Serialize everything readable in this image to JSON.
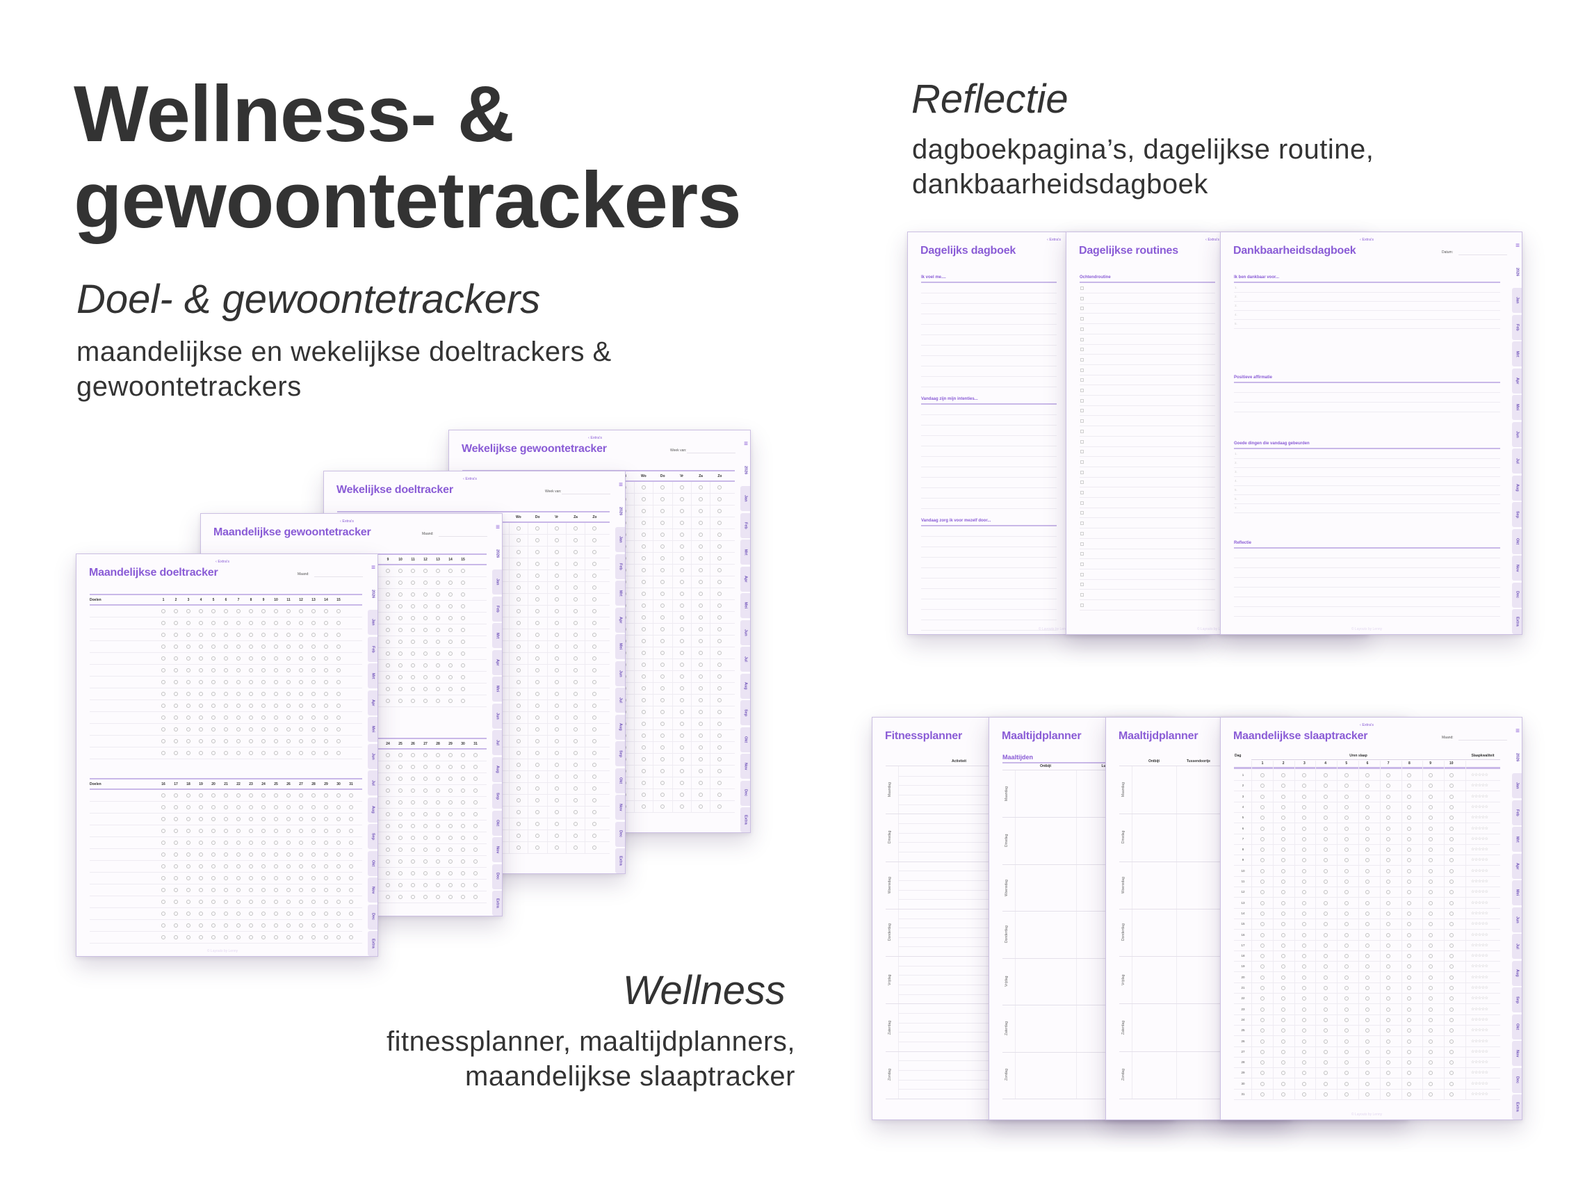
{
  "hero": {
    "title_line1": "Wellness- &",
    "title_line2": "gewoontetrackers"
  },
  "common": {
    "back_link": "‹ Extra's",
    "menu_icon": "hamburger-menu-icon",
    "tabs": [
      "2026",
      "Jan",
      "Feb",
      "Mrt",
      "Apr",
      "Mei",
      "Jun",
      "Jul",
      "Aug",
      "Sep",
      "Okt",
      "Nov",
      "Dec",
      "Extra"
    ],
    "footer": "© Layouts by Lenny"
  },
  "goals": {
    "heading": "Doel- & gewoontetrackers",
    "description": [
      "maandelijkse en wekelijkse doeltrackers &",
      "gewoontetrackers"
    ],
    "monthly_goal_tracker": {
      "title": "Maandelijkse doeltracker",
      "field_label": "Maand:",
      "row_label": "Doelen",
      "days_first": [
        "1",
        "2",
        "3",
        "4",
        "5",
        "6",
        "7",
        "8",
        "9",
        "10",
        "11",
        "12",
        "13",
        "14",
        "15"
      ],
      "days_second": [
        "16",
        "17",
        "18",
        "19",
        "20",
        "21",
        "22",
        "23",
        "24",
        "25",
        "26",
        "27",
        "28",
        "29",
        "30",
        "31"
      ]
    },
    "monthly_habit_tracker": {
      "title": "Maandelijkse gewoontetracker",
      "field_label": "Maand:",
      "days_first": [
        "1",
        "2",
        "3",
        "4",
        "5",
        "6",
        "7",
        "8",
        "9",
        "10",
        "11",
        "12",
        "13",
        "14",
        "15"
      ],
      "days_second": [
        "16",
        "17",
        "18",
        "19",
        "20",
        "21",
        "22",
        "23",
        "24",
        "25",
        "26",
        "27",
        "28",
        "29",
        "30",
        "31"
      ]
    },
    "weekly_goal_tracker": {
      "title": "Wekelijkse doeltracker",
      "field_label": "Week van:",
      "weekdays": [
        "Ma",
        "Di",
        "Wo",
        "Do",
        "Vr",
        "Za",
        "Zo"
      ]
    },
    "weekly_habit_tracker": {
      "title": "Wekelijkse gewoontetracker",
      "field_label": "Week van:",
      "weekdays": [
        "Ma",
        "Di",
        "Wo",
        "Do",
        "Vr",
        "Za",
        "Zo"
      ]
    }
  },
  "reflection": {
    "heading": "Reflectie",
    "description": [
      "dagboekpagina’s, dagelijkse routine,",
      "dankbaarheidsdagboek"
    ],
    "daily_journal": {
      "title": "Dagelijks dagboek",
      "sections": [
        "Ik voel me....",
        "Vandaag zijn mijn intenties...",
        "Vandaag zorg ik voor mezelf door..."
      ]
    },
    "daily_routines": {
      "title": "Dagelijkse routines",
      "section": "Ochtendroutine"
    },
    "gratitude_journal": {
      "title": "Dankbaarheidsdagboek",
      "field_label": "Datum:",
      "sections": [
        {
          "label": "Ik ben dankbaar voor...",
          "items": [
            "1.",
            "2.",
            "3.",
            "4.",
            "5."
          ]
        },
        {
          "label": "Positieve affirmatie",
          "items": []
        },
        {
          "label": "Goede dingen die vandaag gebeurden",
          "items": [
            "1.",
            "2.",
            "3.",
            "4.",
            "5.",
            "6.",
            "7."
          ]
        },
        {
          "label": "Reflectie",
          "items": []
        }
      ]
    }
  },
  "wellness": {
    "heading": "Wellness",
    "description": [
      "fitnessplanner, maaltijdplanners,",
      "maandelijkse slaaptracker"
    ],
    "weekdays": [
      "Maandag",
      "Dinsdag",
      "Woensdag",
      "Donderdag",
      "Vrijdag",
      "Zaterdag",
      "Zondag"
    ],
    "fitness_planner": {
      "title": "Fitnessplanner",
      "column": "Activiteit"
    },
    "meal_planner_1": {
      "title": "Maaltijdplanner",
      "subheading": "Maaltijden",
      "columns": [
        "Ontbijt",
        "Lunch"
      ]
    },
    "meal_planner_2": {
      "title": "Maaltijdplanner",
      "columns": [
        "Ontbijt",
        "Tussendoortje"
      ]
    },
    "sleep_tracker": {
      "title": "Maandelijkse slaaptracker",
      "field_label": "Maand:",
      "day_header": "Dag",
      "hours_header": "Uren slaap",
      "quality_header": "Slaapkwaliteit",
      "hours": [
        "1",
        "2",
        "3",
        "4",
        "5",
        "6",
        "7",
        "8",
        "9",
        "10"
      ],
      "days": [
        "1",
        "2",
        "3",
        "4",
        "5",
        "6",
        "7",
        "8",
        "9",
        "10",
        "11",
        "12",
        "13",
        "14",
        "15",
        "16",
        "17",
        "18",
        "19",
        "20",
        "21",
        "22",
        "23",
        "24",
        "25",
        "26",
        "27",
        "28",
        "29",
        "30",
        "31"
      ],
      "rating_max": 5
    }
  },
  "colors": {
    "accent": "#8a5cd6",
    "tab_background": "#ebe4f4",
    "tab_text": "#6d4fb8",
    "page_border": "#cbbfe2",
    "text": "#333333"
  }
}
